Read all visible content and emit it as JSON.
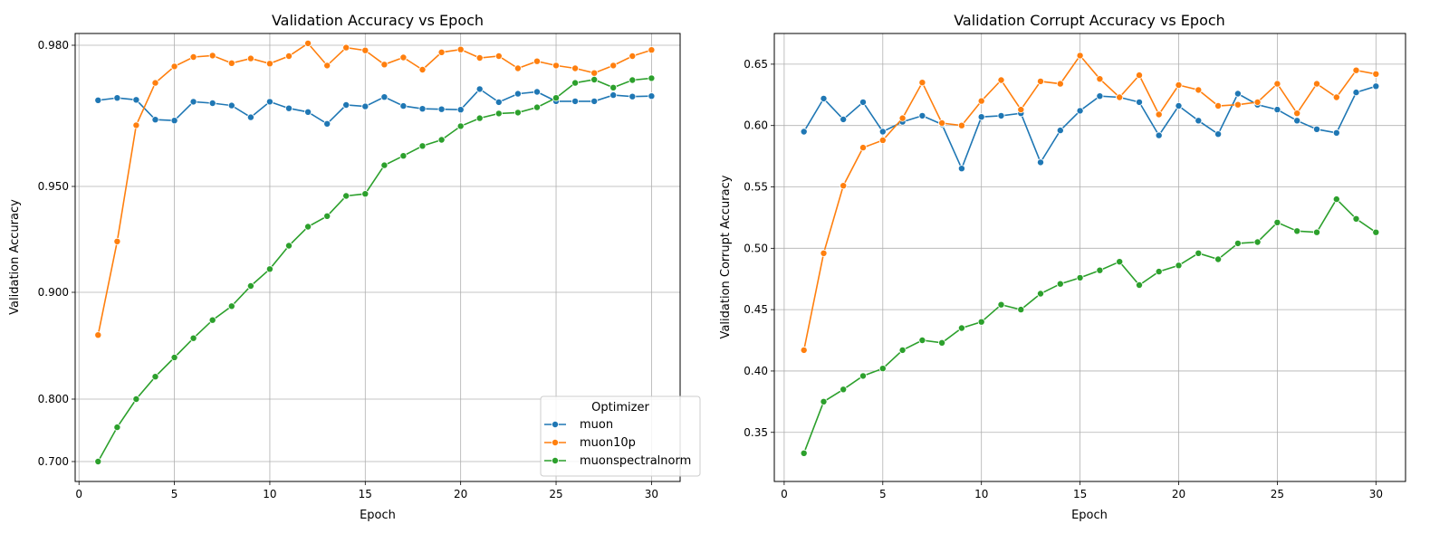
{
  "chart_data": [
    {
      "type": "line",
      "title": "Validation Accuracy vs Epoch",
      "xlabel": "Epoch",
      "ylabel": "Validation Accuracy",
      "xlim": [
        0,
        31
      ],
      "x_ticks": [
        "0",
        "5",
        "10",
        "15",
        "20",
        "25",
        "30"
      ],
      "y_ticks": [
        "0.700",
        "0.800",
        "0.900",
        "0.950",
        "0.980"
      ],
      "y_scale": "non-uniform (tick labels 0.700, 0.800, 0.900, 0.950, 0.980)",
      "grid": true,
      "legend": {
        "title": "Optimizer",
        "placement": "lower right"
      },
      "x": [
        1,
        2,
        3,
        4,
        5,
        6,
        7,
        8,
        9,
        10,
        11,
        12,
        13,
        14,
        15,
        16,
        17,
        18,
        19,
        20,
        21,
        22,
        23,
        24,
        25,
        26,
        27,
        28,
        29,
        30
      ],
      "series": [
        {
          "name": "muon",
          "color": "#1f77b4",
          "values": [
            0.9683,
            0.9688,
            0.9684,
            0.9642,
            0.964,
            0.968,
            0.9677,
            0.9672,
            0.9647,
            0.968,
            0.9666,
            0.9658,
            0.9633,
            0.9673,
            0.967,
            0.969,
            0.9671,
            0.9665,
            0.9664,
            0.9663,
            0.9707,
            0.9679,
            0.9697,
            0.9701,
            0.9681,
            0.9681,
            0.9681,
            0.9694,
            0.9691,
            0.9692
          ]
        },
        {
          "name": "muon10p",
          "color": "#ff7f0e",
          "values": [
            0.86,
            0.924,
            0.963,
            0.972,
            0.9755,
            0.9775,
            0.9778,
            0.9762,
            0.9772,
            0.9761,
            0.9777,
            0.9808,
            0.9757,
            0.9795,
            0.9789,
            0.9759,
            0.9774,
            0.9748,
            0.9785,
            0.9791,
            0.9773,
            0.9777,
            0.9751,
            0.9766,
            0.9757,
            0.9751,
            0.9741,
            0.9757,
            0.9777,
            0.979
          ]
        },
        {
          "name": "muonspectralnorm",
          "color": "#2ca02c",
          "values": [
            0.7,
            0.755,
            0.8,
            0.821,
            0.839,
            0.857,
            0.874,
            0.887,
            0.903,
            0.911,
            0.922,
            0.931,
            0.936,
            0.9455,
            0.9465,
            0.9545,
            0.9565,
            0.9586,
            0.9599,
            0.9628,
            0.9645,
            0.9655,
            0.9657,
            0.9668,
            0.9688,
            0.972,
            0.9727,
            0.971,
            0.9726,
            0.973
          ]
        }
      ]
    },
    {
      "type": "line",
      "title": "Validation Corrupt Accuracy vs Epoch",
      "xlabel": "Epoch",
      "ylabel": "Validation Corrupt Accuracy",
      "xlim": [
        -0.5,
        31.5
      ],
      "ylim": [
        0.31,
        0.675
      ],
      "x_ticks": [
        "0",
        "5",
        "10",
        "15",
        "20",
        "25",
        "30"
      ],
      "y_ticks": [
        "0.35",
        "0.40",
        "0.45",
        "0.50",
        "0.55",
        "0.60",
        "0.65"
      ],
      "grid": true,
      "x": [
        1,
        2,
        3,
        4,
        5,
        6,
        7,
        8,
        9,
        10,
        11,
        12,
        13,
        14,
        15,
        16,
        17,
        18,
        19,
        20,
        21,
        22,
        23,
        24,
        25,
        26,
        27,
        28,
        29,
        30
      ],
      "series": [
        {
          "name": "muon",
          "color": "#1f77b4",
          "values": [
            0.595,
            0.622,
            0.605,
            0.619,
            0.595,
            0.603,
            0.608,
            0.601,
            0.565,
            0.607,
            0.608,
            0.61,
            0.57,
            0.596,
            0.612,
            0.624,
            0.623,
            0.619,
            0.592,
            0.616,
            0.604,
            0.593,
            0.626,
            0.617,
            0.613,
            0.604,
            0.597,
            0.594,
            0.627,
            0.632
          ]
        },
        {
          "name": "muon10p",
          "color": "#ff7f0e",
          "values": [
            0.417,
            0.496,
            0.551,
            0.582,
            0.588,
            0.606,
            0.635,
            0.602,
            0.6,
            0.62,
            0.637,
            0.613,
            0.636,
            0.634,
            0.657,
            0.638,
            0.623,
            0.641,
            0.609,
            0.633,
            0.629,
            0.616,
            0.617,
            0.619,
            0.634,
            0.61,
            0.634,
            0.623,
            0.645,
            0.642
          ]
        },
        {
          "name": "muonspectralnorm",
          "color": "#2ca02c",
          "values": [
            0.333,
            0.375,
            0.385,
            0.396,
            0.402,
            0.417,
            0.425,
            0.423,
            0.435,
            0.44,
            0.454,
            0.45,
            0.463,
            0.471,
            0.476,
            0.482,
            0.489,
            0.47,
            0.481,
            0.486,
            0.496,
            0.491,
            0.504,
            0.505,
            0.521,
            0.514,
            0.513,
            0.54,
            0.524,
            0.513
          ]
        }
      ]
    }
  ]
}
